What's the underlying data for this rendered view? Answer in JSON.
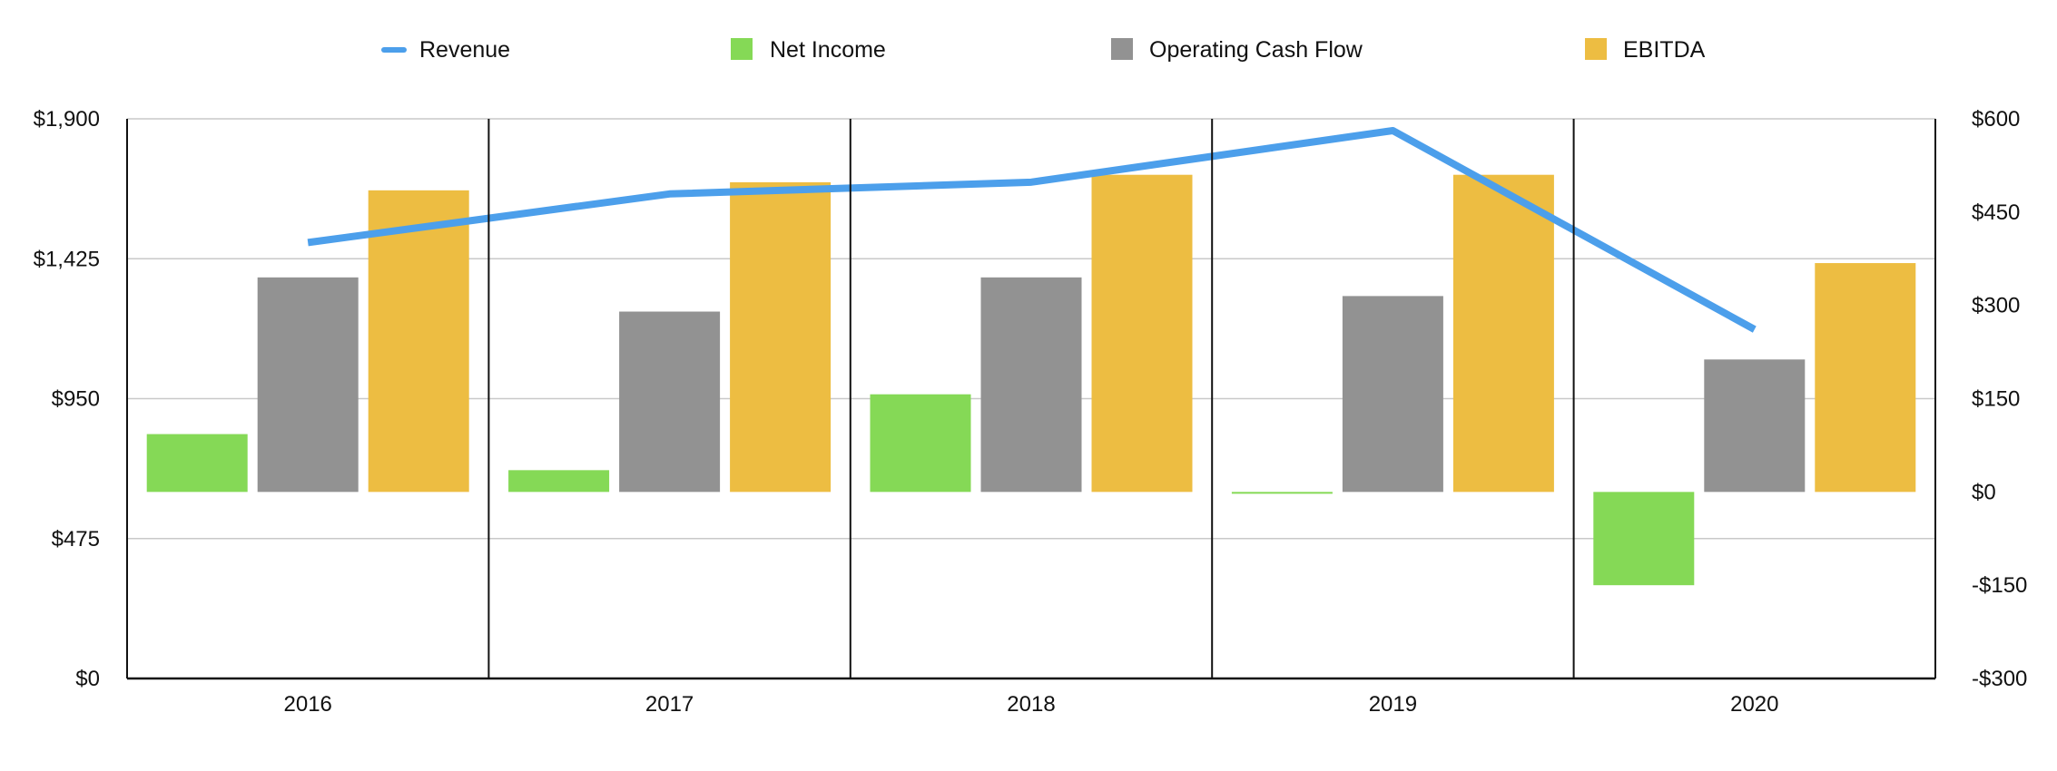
{
  "chart_data": {
    "type": "bar",
    "categories": [
      "2016",
      "2017",
      "2018",
      "2019",
      "2020"
    ],
    "legend_position": "top",
    "grid": true,
    "y_left": {
      "min": 0,
      "max": 1900,
      "ticks": [
        0,
        475,
        950,
        1425,
        1900
      ],
      "tick_labels": [
        "$0",
        "$475",
        "$950",
        "$1,425",
        "$1,900"
      ]
    },
    "y_right": {
      "min": -300,
      "max": 600,
      "ticks": [
        -300,
        -150,
        0,
        150,
        300,
        450,
        600
      ],
      "tick_labels": [
        "-$300",
        "-$150",
        "$0",
        "$150",
        "$300",
        "$450",
        "$600"
      ]
    },
    "series": [
      {
        "name": "Revenue",
        "type": "line",
        "axis": "left",
        "color": "#4C9FEB",
        "values": [
          1480,
          1645,
          1685,
          1860,
          1185
        ]
      },
      {
        "name": "Net Income",
        "type": "bar",
        "axis": "right",
        "color": "#85D956",
        "values": [
          93,
          35,
          157,
          -2,
          -150
        ]
      },
      {
        "name": "Operating Cash Flow",
        "type": "bar",
        "axis": "right",
        "color": "#929292",
        "values": [
          345,
          290,
          345,
          315,
          213
        ]
      },
      {
        "name": "EBITDA",
        "type": "bar",
        "axis": "right",
        "color": "#EDBD42",
        "values": [
          485,
          498,
          510,
          510,
          368
        ]
      }
    ]
  }
}
